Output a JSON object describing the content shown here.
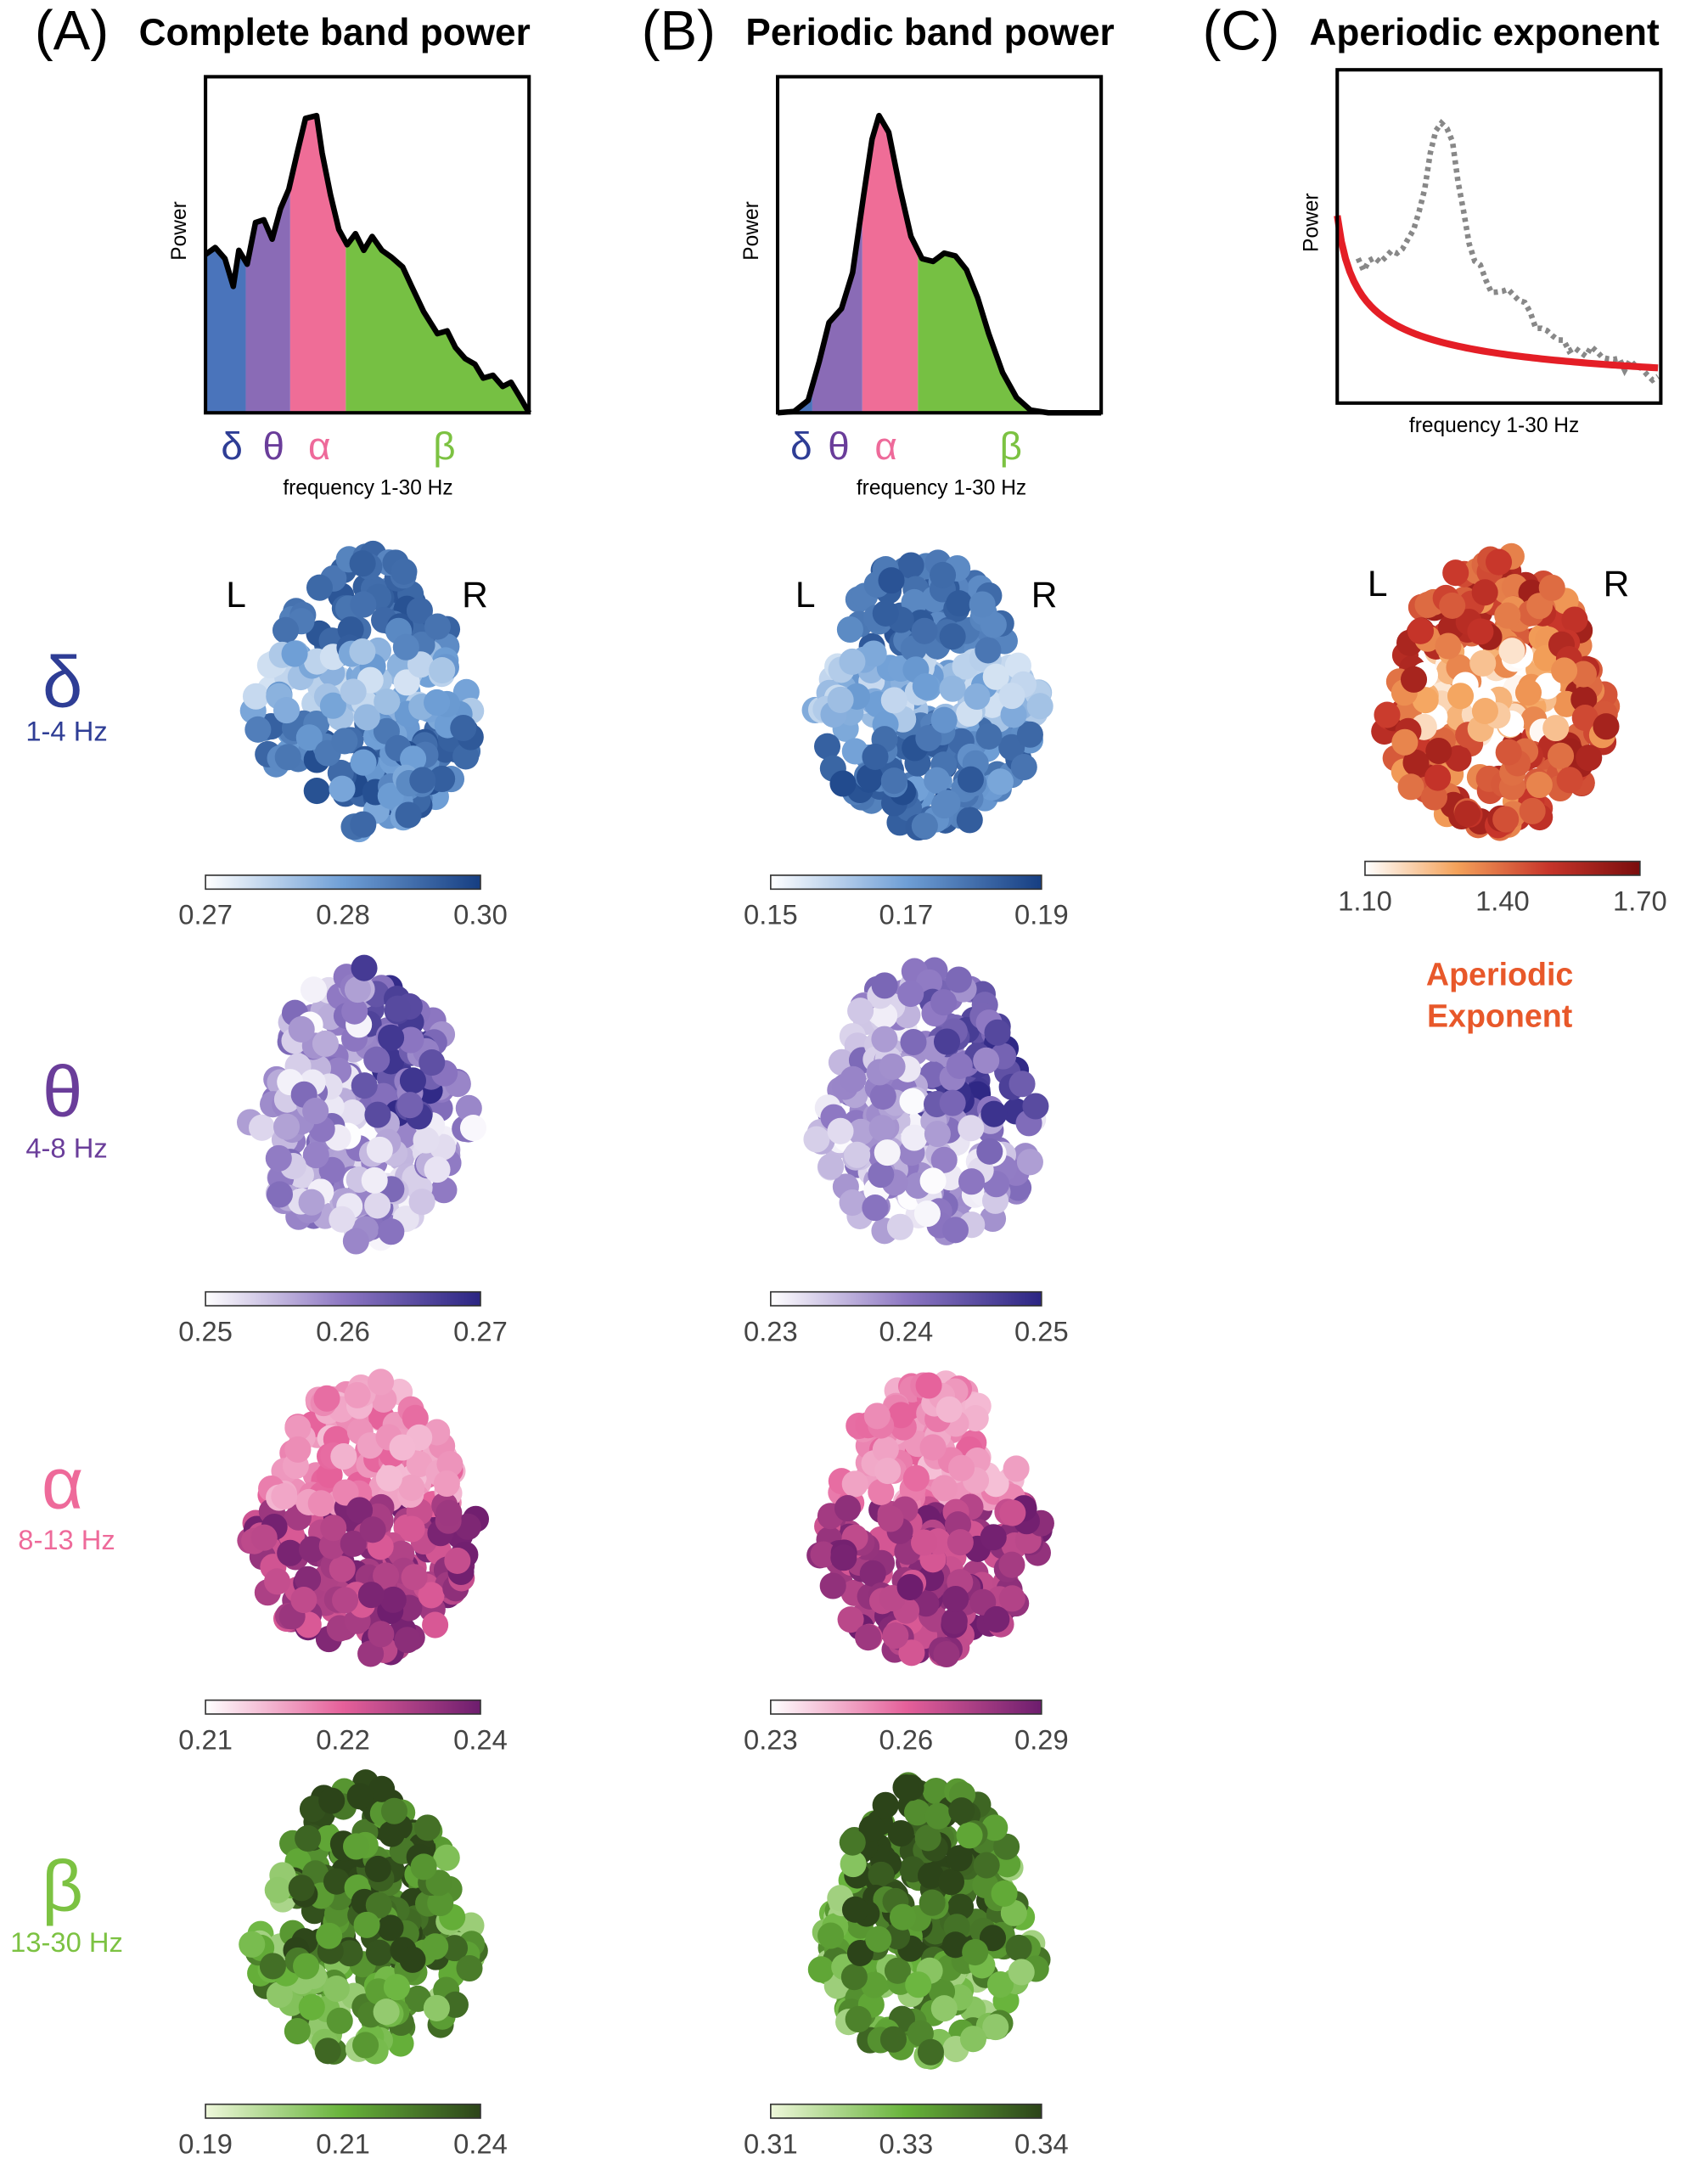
{
  "panels": [
    {
      "label": "(A)",
      "title": "Complete band power",
      "spectrum": {
        "y_label": "Power",
        "x_label": "frequency 1-30 Hz",
        "bands": [
          "δ",
          "θ",
          "α",
          "β"
        ]
      },
      "maps": [
        {
          "ticks": [
            "0.27",
            "0.28",
            "0.30"
          ]
        },
        {
          "ticks": [
            "0.25",
            "0.26",
            "0.27"
          ]
        },
        {
          "ticks": [
            "0.21",
            "0.22",
            "0.24"
          ]
        },
        {
          "ticks": [
            "0.19",
            "0.21",
            "0.24"
          ]
        }
      ]
    },
    {
      "label": "(B)",
      "title": "Periodic band power",
      "spectrum": {
        "y_label": "Power",
        "x_label": "frequency 1-30 Hz",
        "bands": [
          "δ",
          "θ",
          "α",
          "β"
        ]
      },
      "maps": [
        {
          "ticks": [
            "0.15",
            "0.17",
            "0.19"
          ]
        },
        {
          "ticks": [
            "0.23",
            "0.24",
            "0.25"
          ]
        },
        {
          "ticks": [
            "0.23",
            "0.26",
            "0.29"
          ]
        },
        {
          "ticks": [
            "0.31",
            "0.33",
            "0.34"
          ]
        }
      ]
    },
    {
      "label": "(C)",
      "title": "Aperiodic exponent",
      "spectrum": {
        "y_label": "Power",
        "x_label": "frequency 1-30 Hz"
      },
      "maps": [
        {
          "ticks": [
            "1.10",
            "1.40",
            "1.70"
          ]
        }
      ],
      "caption": [
        "Aperiodic",
        "Exponent"
      ]
    }
  ],
  "hemispheres": [
    "L",
    "R"
  ],
  "rows": [
    {
      "symbol": "δ",
      "range": "1-4 Hz"
    },
    {
      "symbol": "θ",
      "range": "4-8 Hz"
    },
    {
      "symbol": "α",
      "range": "8-13 Hz"
    },
    {
      "symbol": "β",
      "range": "13-30 Hz"
    }
  ]
}
